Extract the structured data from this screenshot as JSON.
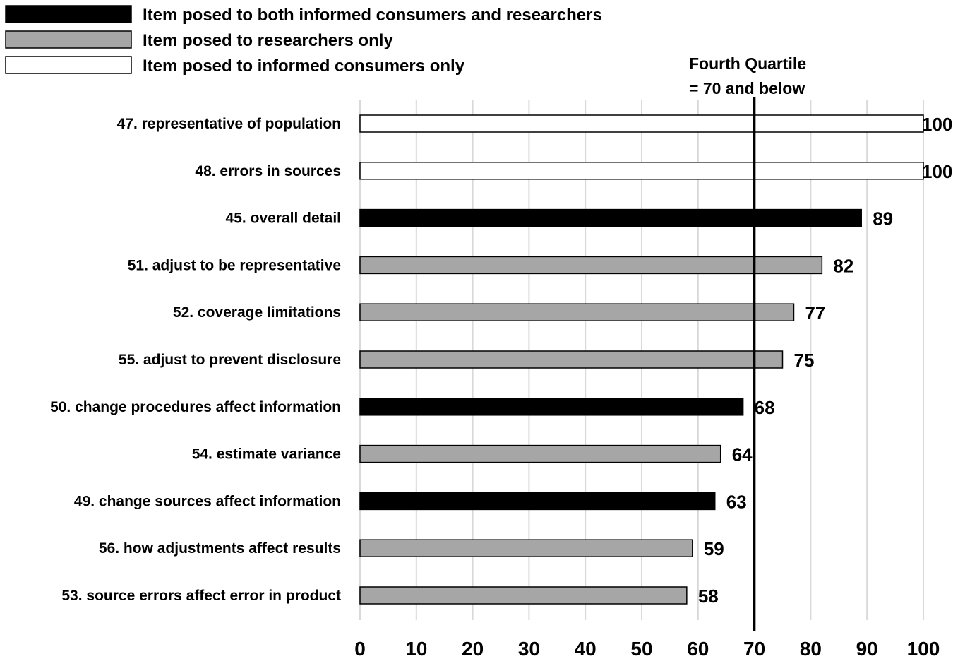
{
  "chart_data": {
    "type": "bar",
    "orientation": "horizontal",
    "legend": {
      "placement": "top-left",
      "entries": [
        {
          "label": "Item posed to both informed consumers and researchers",
          "color": "#000000"
        },
        {
          "label": "Item posed to researchers only",
          "color": "#a6a6a6"
        },
        {
          "label": "Item posed to informed consumers only",
          "color": "#ffffff"
        }
      ]
    },
    "categories": [
      "47. representative of population",
      "48. errors in sources",
      "45. overall detail",
      "51. adjust to be representative",
      "52. coverage limitations",
      "55. adjust to prevent disclosure",
      "50. change procedures affect information",
      "54. estimate variance",
      "49. change sources affect information",
      "56. how adjustments affect results",
      "53. source errors affect error in product"
    ],
    "values": [
      100,
      100,
      89,
      82,
      77,
      75,
      68,
      64,
      63,
      59,
      58
    ],
    "groups": [
      2,
      2,
      0,
      1,
      1,
      1,
      0,
      1,
      0,
      1,
      1
    ],
    "xlim": [
      0,
      100
    ],
    "xticks": [
      0,
      10,
      20,
      30,
      40,
      50,
      60,
      70,
      80,
      90,
      100
    ],
    "grid": true,
    "reference_line": {
      "value": 70,
      "label_lines": [
        "Fourth Quartile",
        "= 70 and below"
      ]
    }
  }
}
